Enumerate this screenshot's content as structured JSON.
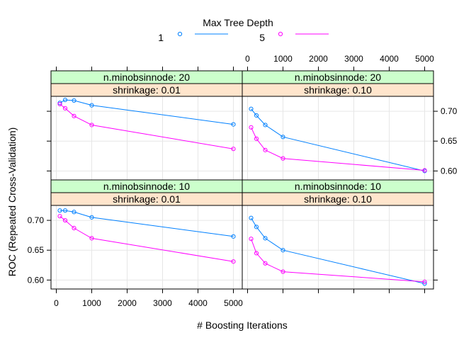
{
  "chart_data": {
    "type": "line",
    "title": "",
    "xlabel": "# Boosting Iterations",
    "ylabel": "ROC (Repeated Cross-Validation)",
    "xlim": [
      -150,
      5250
    ],
    "ylim": [
      0.585,
      0.725
    ],
    "xticks": [
      0,
      1000,
      2000,
      3000,
      4000,
      5000
    ],
    "xtick_labels": [
      "0",
      "1000",
      "2000",
      "3000",
      "4000",
      "5000"
    ],
    "yticks": [
      0.6,
      0.65,
      0.7
    ],
    "ytick_labels": [
      "0.60",
      "0.65",
      "0.70"
    ],
    "grid": true,
    "legend": {
      "title": "Max Tree Depth",
      "position": "top",
      "entries": [
        {
          "label": "1",
          "color": "#0080ff"
        },
        {
          "label": "5",
          "color": "#ff00ff"
        }
      ]
    },
    "x": [
      100,
      250,
      500,
      1000,
      5000
    ],
    "panels": [
      {
        "strip_minobs": "n.minobsinnode: 10",
        "strip_shrink": "shrinkage: 0.01",
        "series": [
          {
            "name": "1",
            "values": [
              0.7165,
              0.7165,
              0.714,
              0.705,
              0.673
            ]
          },
          {
            "name": "5",
            "values": [
              0.707,
              0.7,
              0.687,
              0.67,
              0.631
            ]
          }
        ]
      },
      {
        "strip_minobs": "n.minobsinnode: 10",
        "strip_shrink": "shrinkage: 0.10",
        "series": [
          {
            "name": "1",
            "values": [
              0.704,
              0.689,
              0.67,
              0.65,
              0.594
            ]
          },
          {
            "name": "5",
            "values": [
              0.669,
              0.645,
              0.628,
              0.614,
              0.597
            ]
          }
        ]
      },
      {
        "strip_minobs": "n.minobsinnode: 20",
        "strip_shrink": "shrinkage: 0.01",
        "series": [
          {
            "name": "1",
            "values": [
              0.714,
              0.719,
              0.718,
              0.71,
              0.678
            ]
          },
          {
            "name": "5",
            "values": [
              0.712,
              0.705,
              0.692,
              0.677,
              0.637
            ]
          }
        ]
      },
      {
        "strip_minobs": "n.minobsinnode: 20",
        "strip_shrink": "shrinkage: 0.10",
        "series": [
          {
            "name": "1",
            "values": [
              0.704,
              0.693,
              0.677,
              0.657,
              0.6
            ]
          },
          {
            "name": "5",
            "values": [
              0.673,
              0.654,
              0.635,
              0.621,
              0.601
            ]
          }
        ]
      }
    ],
    "colors": {
      "strip_top": "#ccffcc",
      "strip_bottom": "#ffe5cc",
      "grid": "#e6e6e6"
    }
  }
}
